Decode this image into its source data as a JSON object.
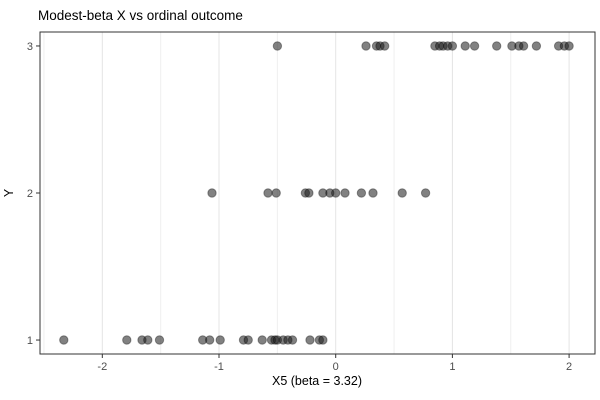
{
  "chart_data": {
    "type": "scatter",
    "title": "Modest-beta X vs ordinal outcome",
    "xlabel": "X5 (beta = 3.32)",
    "ylabel": "Y",
    "xlim": [
      -2.534,
      2.222
    ],
    "ylim": [
      0.905,
      3.095
    ],
    "x_major_ticks": [
      -2,
      -1,
      0,
      1,
      2
    ],
    "x_minor_gridlines": [
      -2.5,
      -1.5,
      -0.5,
      0.5,
      1.5
    ],
    "y_ticks": [
      1,
      2,
      3
    ],
    "grid": "vertical-only",
    "legend": "none",
    "point_style": {
      "radius": 4.2,
      "fill": "rgba(25,25,25,0.55)",
      "stroke": "rgba(0,0,0,0.35)"
    },
    "colors": {
      "background": "#ffffff",
      "panel_background": "#ffffff",
      "grid_major": "#e4e4e4",
      "grid_minor": "#efefef",
      "panel_border": "#333333",
      "tick_mark": "#333333",
      "tick_label": "#4d4d4d",
      "title_text": "#000000",
      "axis_title_text": "#000000"
    },
    "series": [
      {
        "name": "Y = 1",
        "y": 1,
        "x": [
          -2.33,
          -1.79,
          -1.66,
          -1.61,
          -1.51,
          -1.14,
          -1.08,
          -0.99,
          -0.79,
          -0.75,
          -0.63,
          -0.55,
          -0.52,
          -0.5,
          -0.45,
          -0.41,
          -0.37,
          -0.22,
          -0.14,
          -0.11
        ]
      },
      {
        "name": "Y = 2",
        "y": 2,
        "x": [
          -1.06,
          -0.58,
          -0.51,
          -0.26,
          -0.23,
          -0.11,
          -0.05,
          0.0,
          0.08,
          0.22,
          0.32,
          0.57,
          0.77
        ]
      },
      {
        "name": "Y = 3",
        "y": 3,
        "x": [
          -0.5,
          0.26,
          0.35,
          0.38,
          0.42,
          0.85,
          0.89,
          0.92,
          0.96,
          1.0,
          1.11,
          1.19,
          1.38,
          1.51,
          1.57,
          1.61,
          1.72,
          1.91,
          1.96,
          2.0
        ]
      }
    ]
  }
}
